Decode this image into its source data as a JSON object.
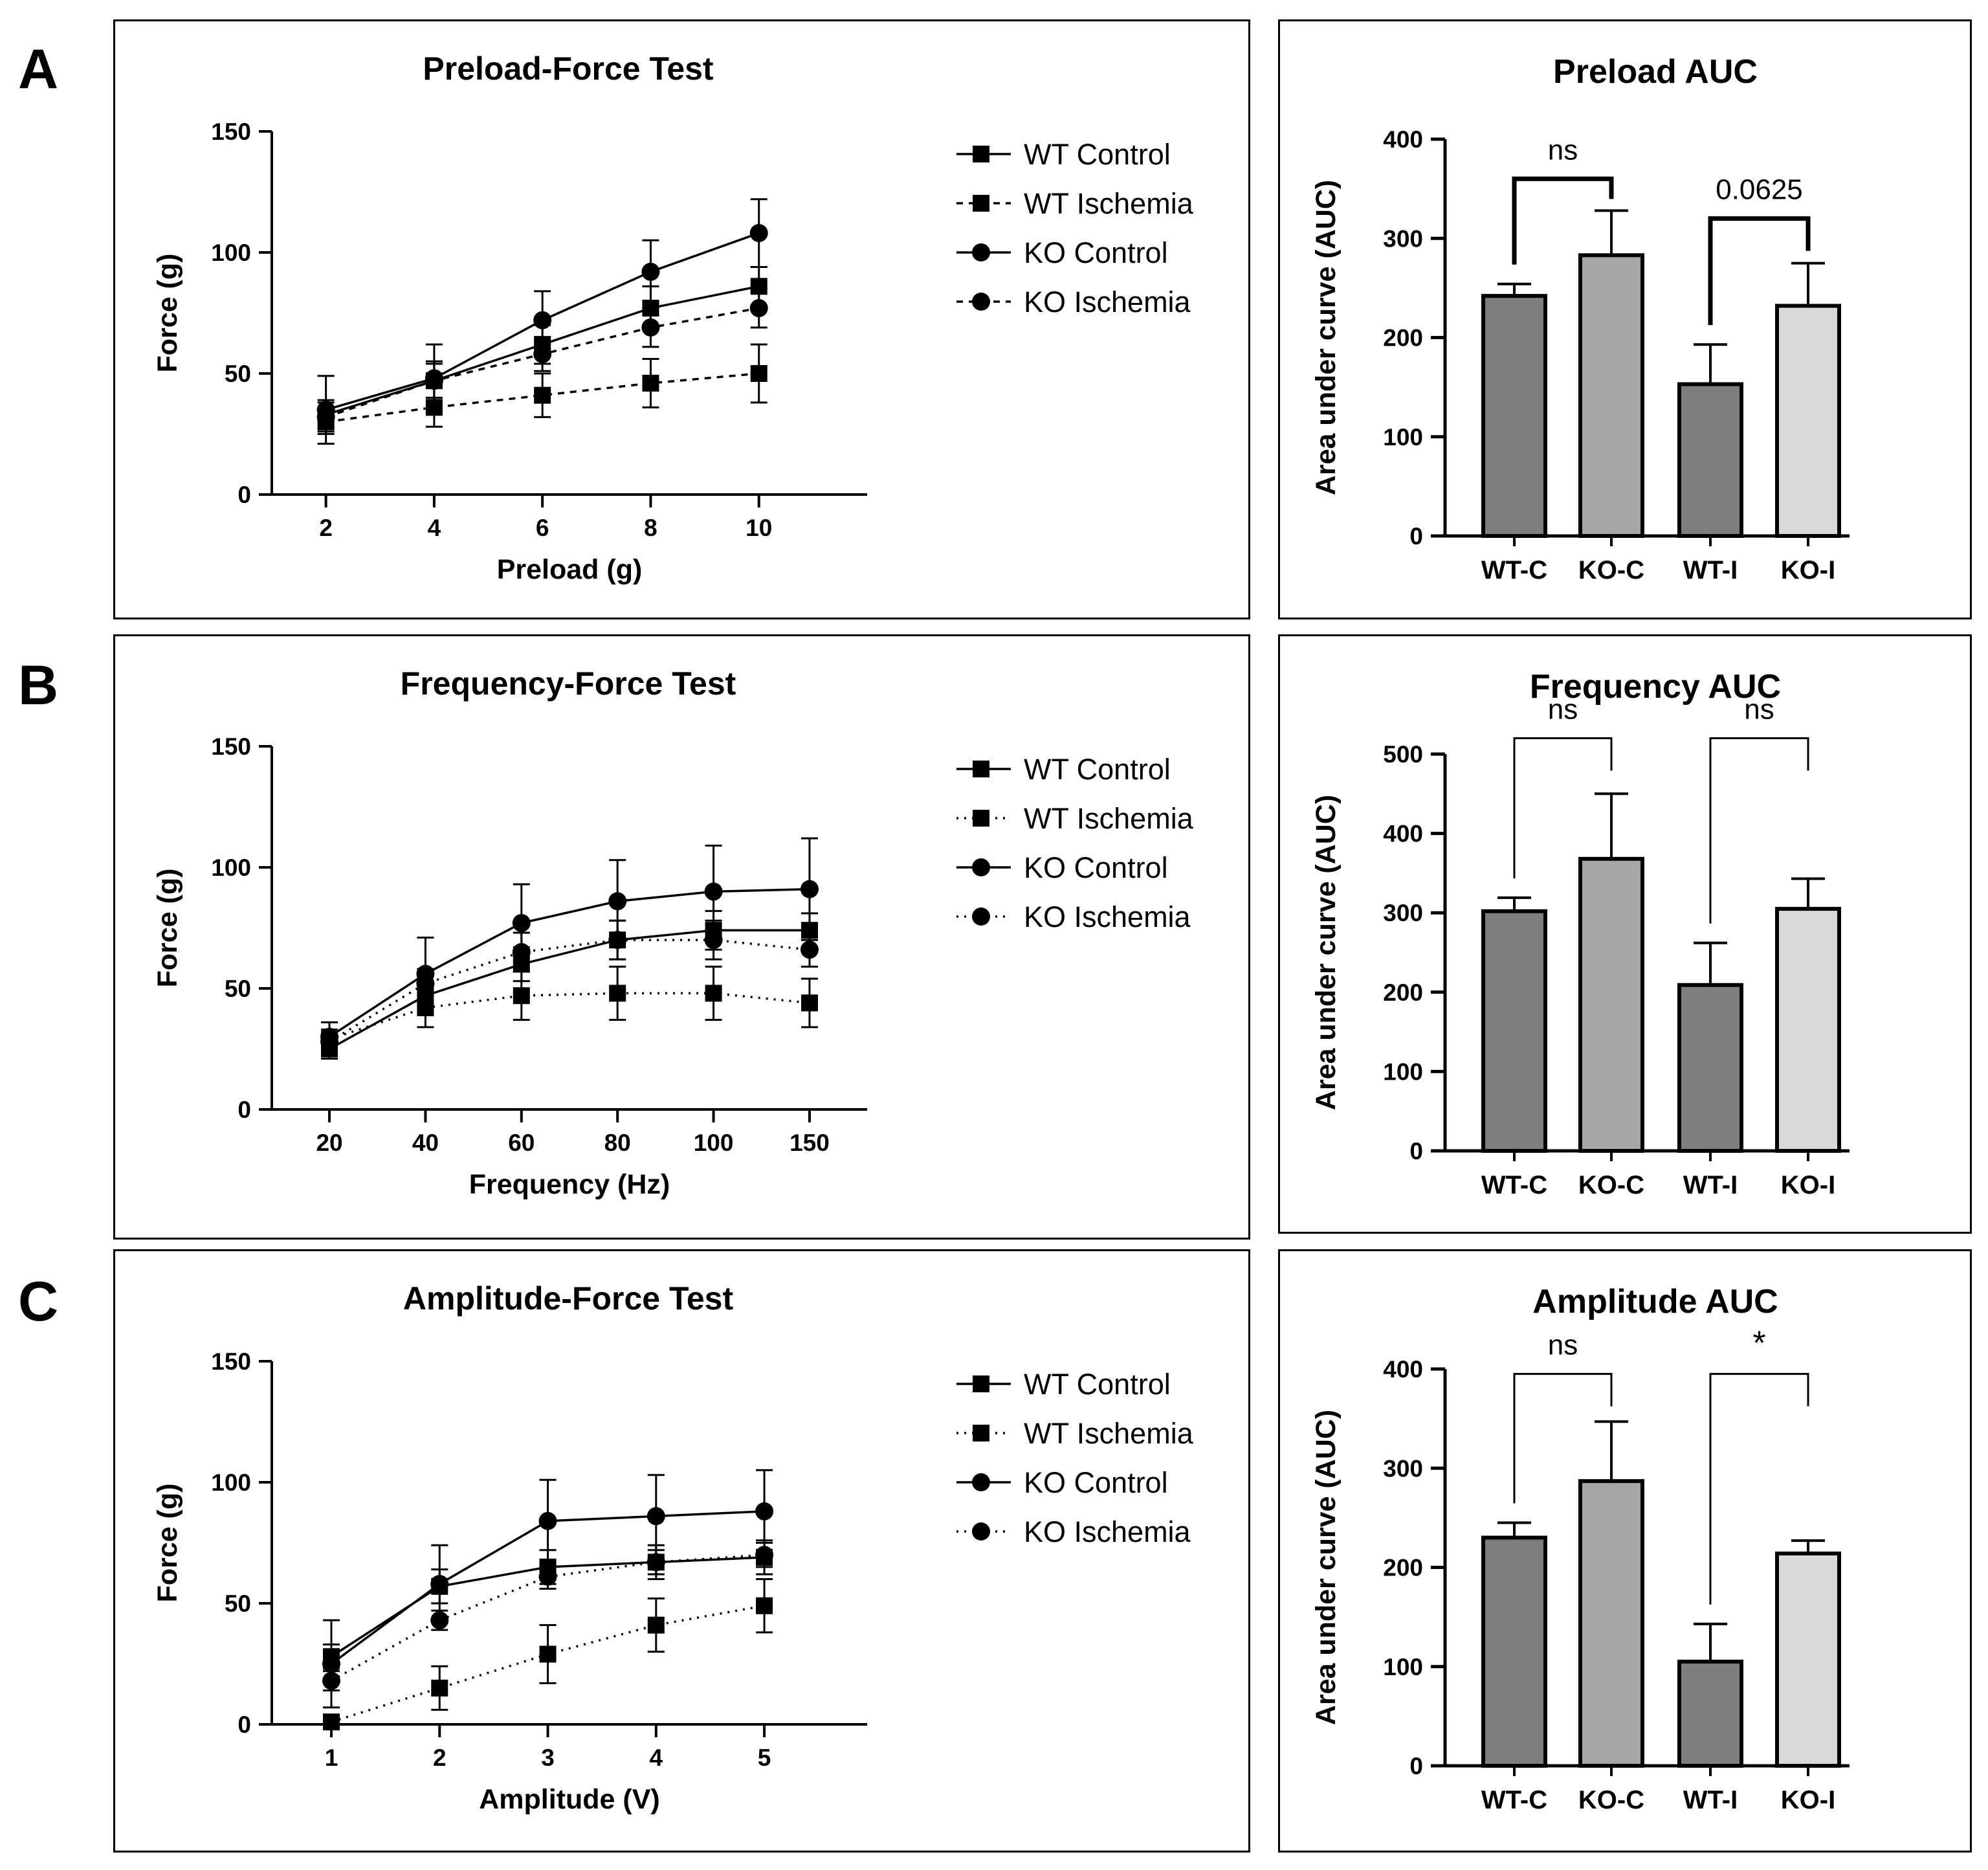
{
  "panel_letters": [
    "A",
    "B",
    "C"
  ],
  "colors": {
    "bar_wt": "#7f7f7f",
    "bar_ko_c": "#a6a6a6",
    "bar_ko_i": "#d9d9d9",
    "ink": "#000000"
  },
  "legend": [
    "WT Control",
    "WT Ischemia",
    "KO Control",
    "KO Ischemia"
  ],
  "chart_data": [
    {
      "id": "line-A",
      "type": "line",
      "title": "Preload-Force Test",
      "xlabel": "Preload (g)",
      "ylabel": "Force (g)",
      "categories": [
        "2",
        "4",
        "6",
        "8",
        "10"
      ],
      "xvalues": [
        2,
        4,
        6,
        8,
        10
      ],
      "xlim": [
        1,
        12
      ],
      "ylim": [
        0,
        150
      ],
      "yticks": [
        0,
        50,
        100,
        150
      ],
      "series": [
        {
          "name": "WT Control",
          "marker": "square",
          "dash": "solid",
          "values": [
            33,
            47,
            62,
            77,
            86
          ],
          "errors": [
            6,
            8,
            8,
            9,
            8
          ]
        },
        {
          "name": "WT Ischemia",
          "marker": "square",
          "dash": "dashed",
          "values": [
            30,
            36,
            41,
            46,
            50
          ],
          "errors": [
            5,
            8,
            9,
            10,
            12
          ]
        },
        {
          "name": "KO Control",
          "marker": "circle",
          "dash": "solid",
          "values": [
            35,
            48,
            72,
            92,
            108
          ],
          "errors": [
            14,
            14,
            12,
            13,
            14
          ]
        },
        {
          "name": "KO Ischemia",
          "marker": "circle",
          "dash": "dashed",
          "values": [
            32,
            47,
            58,
            69,
            77
          ],
          "errors": [
            6,
            7,
            7,
            8,
            8
          ]
        }
      ]
    },
    {
      "id": "bar-A",
      "type": "bar",
      "title": "Preload AUC",
      "ylabel": "Area under curve (AUC)",
      "categories": [
        "WT-C",
        "KO-C",
        "WT-I",
        "KO-I"
      ],
      "values": [
        242,
        283,
        153,
        232
      ],
      "errors": [
        12,
        45,
        40,
        43
      ],
      "ylim": [
        0,
        400
      ],
      "yticks": [
        0,
        100,
        200,
        300,
        400
      ],
      "annotations": [
        {
          "from": 0,
          "to": 1,
          "label": "ns",
          "y": 360,
          "bold": true
        },
        {
          "from": 2,
          "to": 3,
          "label": "0.0625",
          "y": 320,
          "bold": true
        }
      ]
    },
    {
      "id": "line-B",
      "type": "line",
      "title": "Frequency-Force Test",
      "xlabel": "Frequency (Hz)",
      "ylabel": "Force (g)",
      "categories": [
        "20",
        "40",
        "60",
        "80",
        "100",
        "150"
      ],
      "xvalues": [
        20,
        40,
        60,
        80,
        100,
        120
      ],
      "xlim": [
        8,
        132
      ],
      "ylim": [
        0,
        150
      ],
      "yticks": [
        0,
        50,
        100,
        150
      ],
      "series": [
        {
          "name": "WT Control",
          "marker": "square",
          "dash": "solid",
          "values": [
            25,
            47,
            60,
            70,
            74,
            74
          ],
          "errors": [
            4,
            8,
            7,
            8,
            8,
            7
          ]
        },
        {
          "name": "WT Ischemia",
          "marker": "square",
          "dash": "dotted",
          "values": [
            29,
            42,
            47,
            48,
            48,
            44
          ],
          "errors": [
            4,
            8,
            10,
            11,
            11,
            10
          ]
        },
        {
          "name": "KO Control",
          "marker": "circle",
          "dash": "solid",
          "values": [
            30,
            56,
            77,
            86,
            90,
            91
          ],
          "errors": [
            6,
            15,
            16,
            17,
            19,
            21
          ]
        },
        {
          "name": "KO Ischemia",
          "marker": "circle",
          "dash": "dotted",
          "values": [
            28,
            52,
            65,
            70,
            70,
            66
          ],
          "errors": [
            4,
            6,
            8,
            8,
            8,
            7
          ]
        }
      ]
    },
    {
      "id": "bar-B",
      "type": "bar",
      "title": "Frequency AUC",
      "ylabel": "Area under curve (AUC)",
      "categories": [
        "WT-C",
        "KO-C",
        "WT-I",
        "KO-I"
      ],
      "values": [
        302,
        368,
        209,
        305
      ],
      "errors": [
        17,
        82,
        53,
        38
      ],
      "ylim": [
        0,
        500
      ],
      "yticks": [
        0,
        100,
        200,
        300,
        400,
        500
      ],
      "annotations": [
        {
          "from": 0,
          "to": 1,
          "label": "ns",
          "y": 520,
          "bold": false
        },
        {
          "from": 2,
          "to": 3,
          "label": "ns",
          "y": 520,
          "bold": false
        }
      ]
    },
    {
      "id": "line-C",
      "type": "line",
      "title": "Amplitude-Force Test",
      "xlabel": "Amplitude (V)",
      "ylabel": "Force (g)",
      "categories": [
        "1",
        "2",
        "3",
        "4",
        "5"
      ],
      "xvalues": [
        1,
        2,
        3,
        4,
        5
      ],
      "xlim": [
        0.45,
        5.95
      ],
      "ylim": [
        0,
        150
      ],
      "yticks": [
        0,
        50,
        100,
        150
      ],
      "series": [
        {
          "name": "WT Control",
          "marker": "square",
          "dash": "solid",
          "values": [
            28,
            57,
            65,
            67,
            69
          ],
          "errors": [
            5,
            7,
            7,
            7,
            7
          ]
        },
        {
          "name": "WT Ischemia",
          "marker": "square",
          "dash": "dotted",
          "values": [
            1,
            15,
            29,
            41,
            49
          ],
          "errors": [
            1,
            9,
            12,
            11,
            11
          ]
        },
        {
          "name": "KO Control",
          "marker": "circle",
          "dash": "solid",
          "values": [
            25,
            58,
            84,
            86,
            88
          ],
          "errors": [
            18,
            16,
            17,
            17,
            17
          ]
        },
        {
          "name": "KO Ischemia",
          "marker": "circle",
          "dash": "dotted",
          "values": [
            18,
            43,
            61,
            67,
            70
          ],
          "errors": [
            4,
            4,
            5,
            5,
            5
          ]
        }
      ]
    },
    {
      "id": "bar-C",
      "type": "bar",
      "title": "Amplitude AUC",
      "ylabel": "Area under curve (AUC)",
      "categories": [
        "WT-C",
        "KO-C",
        "WT-I",
        "KO-I"
      ],
      "values": [
        230,
        287,
        105,
        214
      ],
      "errors": [
        15,
        60,
        38,
        13
      ],
      "ylim": [
        0,
        400
      ],
      "yticks": [
        0,
        100,
        200,
        300,
        400
      ],
      "annotations": [
        {
          "from": 0,
          "to": 1,
          "label": "ns",
          "y": 395,
          "bold": false
        },
        {
          "from": 2,
          "to": 3,
          "label": "*",
          "y": 395,
          "bold": false
        }
      ]
    }
  ]
}
